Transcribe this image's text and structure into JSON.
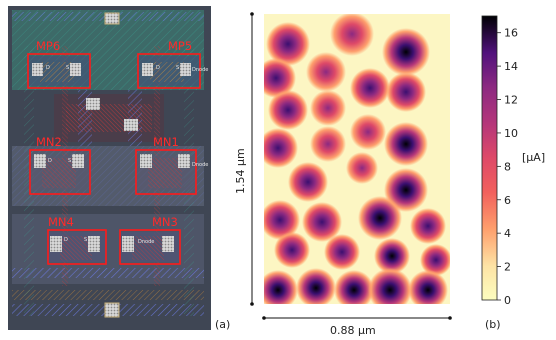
{
  "panel_a": {
    "caption": "(a)",
    "transistors": [
      "MP6",
      "MP5",
      "MN2",
      "MN1",
      "MN4",
      "MN3"
    ],
    "node_labels": [
      "Dnode",
      "Dnode",
      "Dnode"
    ],
    "colors": {
      "background": "#434a57",
      "highlight": "#ff1a1a",
      "poly": "#d33a3a",
      "metal": "#4b56c9",
      "nwell": "#2f8f7f"
    }
  },
  "panel_b": {
    "caption": "(b)",
    "height_label": "1.54 µm",
    "width_label": "0.88 µm",
    "colorbar": {
      "ticks": [
        "0",
        "2",
        "4",
        "6",
        "8",
        "10",
        "12",
        "14",
        "16"
      ],
      "unit": "[µA]",
      "min": 0,
      "max": 17,
      "colormap": "magma_r"
    }
  },
  "chart_data": {
    "type": "heatmap",
    "colorbar_range": [
      0,
      17
    ],
    "colorbar_unit": "µA",
    "extent": {
      "width_um": 0.88,
      "height_um": 1.54
    }
  }
}
